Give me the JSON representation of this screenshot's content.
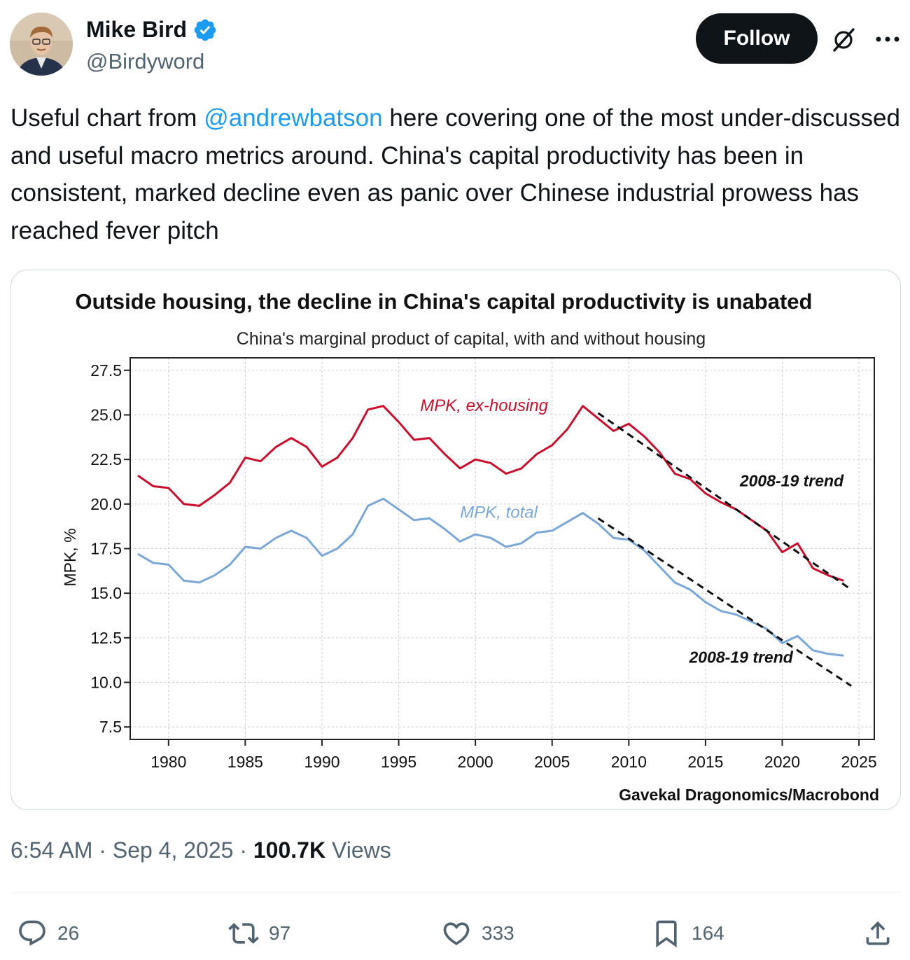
{
  "author": {
    "name": "Mike Bird",
    "handle": "@Birdyword",
    "verified": true
  },
  "follow_label": "Follow",
  "tweet": {
    "text_before": "Useful chart from ",
    "mention": "@andrewbatson",
    "text_after": " here covering one of the most under-discussed and useful macro metrics around. China's capital productivity has been in consistent, marked decline even as panic over Chinese industrial prowess has reached fever pitch"
  },
  "meta": {
    "time": "6:54 AM",
    "date": "Sep 4, 2025",
    "views_count": "100.7K",
    "views_label": "Views"
  },
  "actions": {
    "replies": "26",
    "reposts": "97",
    "likes": "333",
    "bookmarks": "164"
  },
  "colors": {
    "accent": "#1d9bf0",
    "ex_housing_line": "#c8102e",
    "total_line": "#7ba7d6",
    "trend_line": "#111111"
  },
  "chart_data": {
    "type": "line",
    "title": "Outside housing, the decline in China's capital productivity is unabated",
    "subtitle": "China's marginal product of capital, with and without housing",
    "ylabel": "MPK, %",
    "xlabel": "",
    "source": "Gavekal Dragonomics/Macrobond",
    "xlim": [
      1977.5,
      2026
    ],
    "ylim": [
      6.8,
      28.2
    ],
    "yticks": [
      "7.5",
      "10.0",
      "12.5",
      "15.0",
      "17.5",
      "20.0",
      "22.5",
      "25.0",
      "27.5"
    ],
    "xticks": [
      "1980",
      "1985",
      "1990",
      "1995",
      "2000",
      "2005",
      "2010",
      "2015",
      "2020",
      "2025"
    ],
    "grid": true,
    "series": [
      {
        "name": "MPK, ex-housing",
        "x": [
          1978,
          1979,
          1980,
          1981,
          1982,
          1983,
          1984,
          1985,
          1986,
          1987,
          1988,
          1989,
          1990,
          1991,
          1992,
          1993,
          1994,
          1995,
          1996,
          1997,
          1998,
          1999,
          2000,
          2001,
          2002,
          2003,
          2004,
          2005,
          2006,
          2007,
          2008,
          2009,
          2010,
          2011,
          2012,
          2013,
          2014,
          2015,
          2016,
          2017,
          2018,
          2019,
          2020,
          2021,
          2022,
          2023,
          2024
        ],
        "values": [
          21.6,
          21.0,
          20.9,
          20.0,
          19.9,
          20.5,
          21.2,
          22.6,
          22.4,
          23.2,
          23.7,
          23.2,
          22.1,
          22.6,
          23.7,
          25.3,
          25.5,
          24.6,
          23.6,
          23.7,
          22.8,
          22.0,
          22.5,
          22.3,
          21.7,
          22.0,
          22.8,
          23.3,
          24.2,
          25.5,
          24.8,
          24.1,
          24.5,
          23.8,
          22.9,
          21.7,
          21.4,
          20.6,
          20.1,
          19.7,
          19.1,
          18.5,
          17.3,
          17.8,
          16.4,
          16.0,
          15.7
        ]
      },
      {
        "name": "MPK, total",
        "x": [
          1978,
          1979,
          1980,
          1981,
          1982,
          1983,
          1984,
          1985,
          1986,
          1987,
          1988,
          1989,
          1990,
          1991,
          1992,
          1993,
          1994,
          1995,
          1996,
          1997,
          1998,
          1999,
          2000,
          2001,
          2002,
          2003,
          2004,
          2005,
          2006,
          2007,
          2008,
          2009,
          2010,
          2011,
          2012,
          2013,
          2014,
          2015,
          2016,
          2017,
          2018,
          2019,
          2020,
          2021,
          2022,
          2023,
          2024
        ],
        "values": [
          17.2,
          16.7,
          16.6,
          15.7,
          15.6,
          16.0,
          16.6,
          17.6,
          17.5,
          18.1,
          18.5,
          18.1,
          17.1,
          17.5,
          18.3,
          19.9,
          20.3,
          19.7,
          19.1,
          19.2,
          18.6,
          17.9,
          18.3,
          18.1,
          17.6,
          17.8,
          18.4,
          18.5,
          19.0,
          19.5,
          18.9,
          18.1,
          18.0,
          17.4,
          16.5,
          15.6,
          15.2,
          14.5,
          14.0,
          13.8,
          13.4,
          13.0,
          12.2,
          12.6,
          11.8,
          11.6,
          11.5
        ]
      }
    ],
    "trend_lines": [
      {
        "label": "2008-19 trend",
        "x": [
          2008,
          2024.5
        ],
        "values": [
          25.1,
          15.2
        ]
      },
      {
        "label": "2008-19 trend",
        "x": [
          2008,
          2024.5
        ],
        "values": [
          19.2,
          9.8
        ]
      }
    ],
    "annotations": [
      {
        "text": "MPK, ex-housing",
        "series": 0
      },
      {
        "text": "MPK, total",
        "series": 1
      }
    ]
  }
}
